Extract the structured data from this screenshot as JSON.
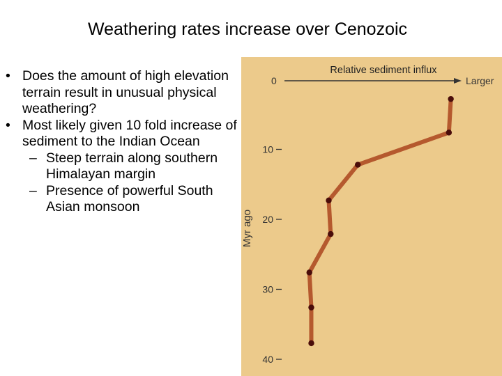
{
  "slide": {
    "title": "Weathering rates increase over Cenozoic",
    "bullets": [
      {
        "text": "Does the amount of high elevation terrain result in unusual physical weathering?",
        "sub": []
      },
      {
        "text": "Most likely given 10 fold increase of sediment to the Indian Ocean",
        "sub": [
          "Steep terrain along southern Himalayan margin",
          "Presence of powerful South Asian monsoon"
        ]
      }
    ]
  },
  "chart_data": {
    "type": "line",
    "title": "Relative sediment influx",
    "xlabel": "Relative sediment influx",
    "x_axis_start_label": "0",
    "x_axis_end_label": "Larger",
    "ylabel": "Myr ago",
    "y_ticks": [
      0,
      10,
      20,
      30,
      40
    ],
    "ylim": [
      0,
      40
    ],
    "y_inverted": true,
    "xlim": [
      0,
      1
    ],
    "series": [
      {
        "points": [
          {
            "x": 0.88,
            "y": 2.8
          },
          {
            "x": 0.87,
            "y": 7.6
          },
          {
            "x": 0.4,
            "y": 12.2
          },
          {
            "x": 0.25,
            "y": 17.3
          },
          {
            "x": 0.26,
            "y": 22.1
          },
          {
            "x": 0.15,
            "y": 27.6
          },
          {
            "x": 0.16,
            "y": 32.6
          },
          {
            "x": 0.16,
            "y": 37.7
          }
        ]
      }
    ],
    "colors": {
      "panel_background": "#ecca8b",
      "line": "#b5592e",
      "marker": "#4a0d0a"
    }
  }
}
